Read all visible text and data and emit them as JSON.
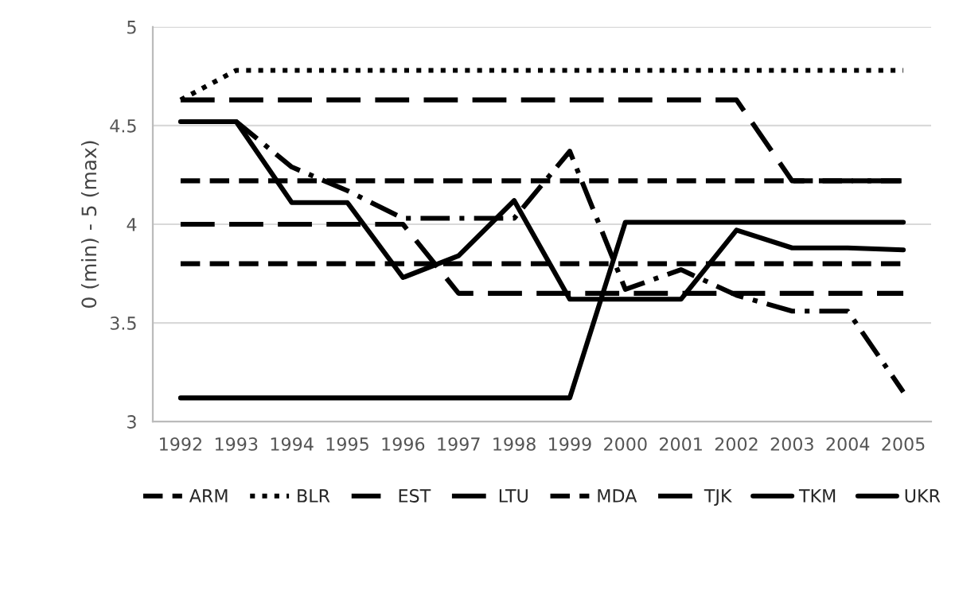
{
  "chart_data": {
    "type": "line",
    "ylabel": "0 (min) - 5 (max)",
    "categories": [
      "1992",
      "1993",
      "1994",
      "1995",
      "1996",
      "1997",
      "1998",
      "1999",
      "2000",
      "2001",
      "2002",
      "2003",
      "2004",
      "2005"
    ],
    "ylim": [
      3,
      5
    ],
    "yticks": [
      3,
      3.5,
      4,
      4.5,
      5
    ],
    "grid": "y",
    "legend": "bottom",
    "marker": "none",
    "series": [
      {
        "name": "ARM",
        "color": "#000000",
        "line_style": "dashed",
        "values": [
          4.22,
          4.22,
          4.22,
          4.22,
          4.22,
          4.22,
          4.22,
          4.22,
          4.22,
          4.22,
          4.22,
          4.22,
          4.22,
          4.22
        ]
      },
      {
        "name": "BLR",
        "color": "#000000",
        "line_style": "dotted",
        "values": [
          4.63,
          4.78,
          4.78,
          4.78,
          4.78,
          4.78,
          4.78,
          4.78,
          4.78,
          4.78,
          4.78,
          4.78,
          4.78,
          4.78
        ]
      },
      {
        "name": "EST",
        "color": "#000000",
        "line_style": "dashdot",
        "values": [
          4.52,
          4.52,
          4.29,
          4.17,
          4.03,
          4.03,
          4.03,
          4.37,
          3.67,
          3.77,
          3.64,
          3.56,
          3.56,
          3.15
        ]
      },
      {
        "name": "LTU",
        "color": "#000000",
        "line_style": "longdash",
        "values": [
          4.63,
          4.63,
          4.63,
          4.63,
          4.63,
          4.63,
          4.63,
          4.63,
          4.63,
          4.63,
          4.63,
          4.22,
          4.22,
          4.22
        ]
      },
      {
        "name": "MDA",
        "color": "#000000",
        "line_style": "dashed",
        "values": [
          3.8,
          3.8,
          3.8,
          3.8,
          3.8,
          3.8,
          3.8,
          3.8,
          3.8,
          3.8,
          3.8,
          3.8,
          3.8,
          3.8
        ]
      },
      {
        "name": "TJK",
        "color": "#000000",
        "line_style": "longdash",
        "values": [
          4.0,
          4.0,
          4.0,
          4.0,
          4.0,
          3.65,
          3.65,
          3.65,
          3.65,
          3.65,
          3.65,
          3.65,
          3.65,
          3.65
        ]
      },
      {
        "name": "TKM",
        "color": "#000000",
        "line_style": "solid",
        "values": [
          3.12,
          3.12,
          3.12,
          3.12,
          3.12,
          3.12,
          3.12,
          3.12,
          4.01,
          4.01,
          4.01,
          4.01,
          4.01,
          4.01
        ]
      },
      {
        "name": "UKR",
        "color": "#000000",
        "line_style": "solid",
        "values": [
          4.52,
          4.52,
          4.11,
          4.11,
          3.73,
          3.84,
          4.12,
          3.62,
          3.62,
          3.62,
          3.97,
          3.88,
          3.88,
          3.87
        ]
      }
    ]
  }
}
